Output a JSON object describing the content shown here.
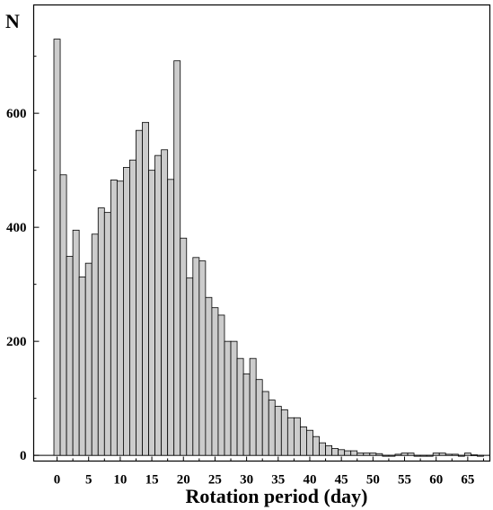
{
  "chart_data": {
    "type": "bar",
    "title": "",
    "xlabel": "Rotation period (day)",
    "ylabel": "N",
    "xlim": [
      -3.7,
      68.5
    ],
    "ylim": [
      -10,
      790
    ],
    "bin_width": 1,
    "grid": false,
    "x_ticks": [
      0,
      5,
      10,
      15,
      20,
      25,
      30,
      35,
      40,
      45,
      50,
      55,
      60,
      65
    ],
    "y_ticks": [
      0,
      200,
      400,
      600
    ],
    "x": [
      0,
      1,
      2,
      3,
      4,
      5,
      6,
      7,
      8,
      9,
      10,
      11,
      12,
      13,
      14,
      15,
      16,
      17,
      18,
      19,
      20,
      21,
      22,
      23,
      24,
      25,
      26,
      27,
      28,
      29,
      30,
      31,
      32,
      33,
      34,
      35,
      36,
      37,
      38,
      39,
      40,
      41,
      42,
      43,
      44,
      45,
      46,
      47,
      48,
      49,
      50,
      51,
      52,
      53,
      54,
      55,
      56,
      57,
      58,
      59,
      60,
      61,
      62,
      63,
      64,
      65,
      66,
      67
    ],
    "values": [
      730,
      492,
      349,
      395,
      313,
      337,
      388,
      434,
      426,
      483,
      481,
      505,
      518,
      570,
      584,
      500,
      526,
      536,
      484,
      692,
      381,
      311,
      347,
      341,
      277,
      259,
      246,
      200,
      200,
      170,
      143,
      170,
      133,
      112,
      97,
      86,
      80,
      66,
      66,
      50,
      44,
      33,
      22,
      17,
      12,
      10,
      8,
      8,
      4,
      4,
      4,
      3,
      0,
      0,
      2,
      4,
      4,
      0,
      0,
      0,
      4,
      4,
      2,
      2,
      0,
      4,
      1,
      0
    ]
  }
}
